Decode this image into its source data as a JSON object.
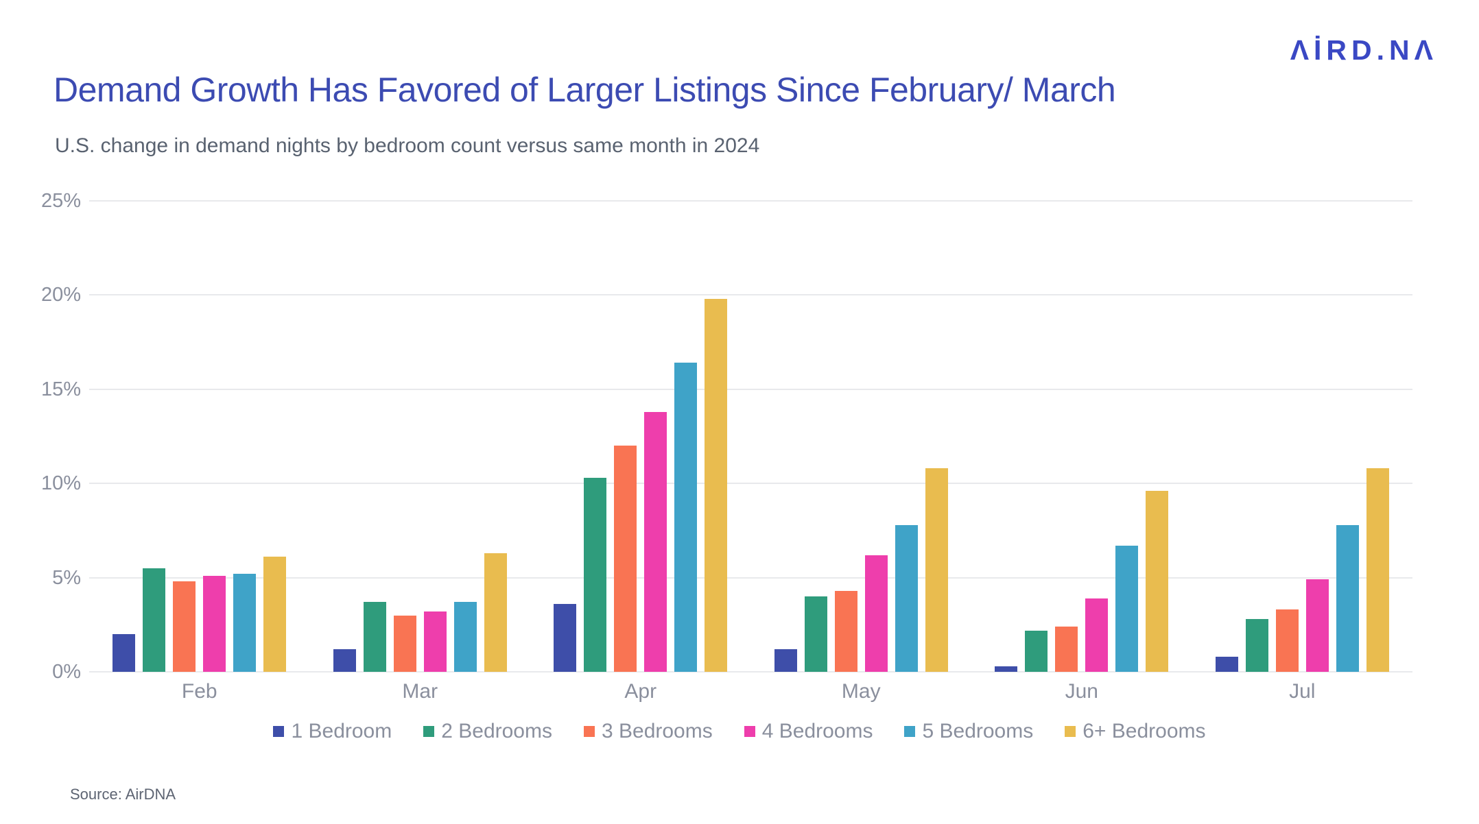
{
  "logo_text": "ΛİRD.NΛ",
  "header": {
    "title": "Demand Growth Has Favored of Larger Listings Since February/ March",
    "subtitle": "U.S. change in demand nights by bedroom count versus same month in 2024"
  },
  "footer": {
    "source": "Source: AirDNA"
  },
  "colors": {
    "title_text": "#3C4BB2",
    "logo_text": "#3A48C4",
    "subtitle_text": "#596270",
    "axis_text": "#8A8F9D",
    "gridline": "#E8E9EC",
    "source_text": "#5D6472"
  },
  "chart_data": {
    "type": "bar",
    "title": "Demand Growth Has Favored of Larger Listings Since February/ March",
    "subtitle": "U.S. change in demand nights by bedroom count versus same month in 2024",
    "categories": [
      "Feb",
      "Mar",
      "Apr",
      "May",
      "Jun",
      "Jul"
    ],
    "series": [
      {
        "name": "1 Bedroom",
        "color": "#3E4EA9",
        "values": [
          2.0,
          1.2,
          3.6,
          1.2,
          0.3,
          0.8
        ]
      },
      {
        "name": "2 Bedrooms",
        "color": "#2F9C7C",
        "values": [
          5.5,
          3.7,
          10.3,
          4.0,
          2.2,
          2.8
        ]
      },
      {
        "name": "3 Bedrooms",
        "color": "#F97453",
        "values": [
          4.8,
          3.0,
          12.0,
          4.3,
          2.4,
          3.3
        ]
      },
      {
        "name": "4 Bedrooms",
        "color": "#EE3EAC",
        "values": [
          5.1,
          3.2,
          13.8,
          6.2,
          3.9,
          4.9
        ]
      },
      {
        "name": "5 Bedrooms",
        "color": "#3FA3C8",
        "values": [
          5.2,
          3.7,
          16.4,
          7.8,
          6.7,
          7.8
        ]
      },
      {
        "name": "6+ Bedrooms",
        "color": "#E9BC4F",
        "values": [
          6.1,
          6.3,
          19.8,
          10.8,
          9.6,
          10.8
        ]
      }
    ],
    "xlabel": "",
    "ylabel": "",
    "ylim": [
      0,
      25
    ],
    "yticks": [
      0,
      5,
      10,
      15,
      20,
      25
    ],
    "ytick_suffix": "%",
    "grid": true,
    "legend_position": "bottom"
  }
}
